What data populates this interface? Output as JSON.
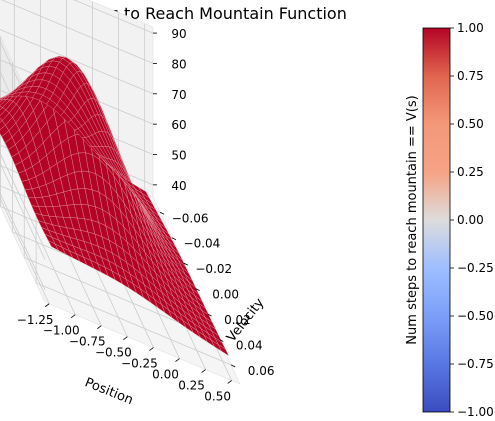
{
  "colors": {
    "surface": "#b40426",
    "pane": "#f2f2f2",
    "grid": "#cccccc",
    "mesh": "#e8a0a8"
  },
  "chart_data": {
    "type": "surface3d",
    "title": "Num steps to Reach Mountain Function",
    "xlabel": "Position",
    "ylabel": "Velocity",
    "zlabel": "",
    "x_ticks": [
      "−1.25",
      "−1.00",
      "−0.75",
      "−0.50",
      "−0.25",
      "0.00",
      "0.25",
      "0.50"
    ],
    "x_tick_values": [
      -1.25,
      -1.0,
      -0.75,
      -0.5,
      -0.25,
      0.0,
      0.25,
      0.5
    ],
    "y_ticks": [
      "−0.06",
      "−0.04",
      "−0.02",
      "0.00",
      "0.02",
      "0.04",
      "0.06"
    ],
    "y_tick_values": [
      -0.06,
      -0.04,
      -0.02,
      0.0,
      0.02,
      0.04,
      0.06
    ],
    "z_ticks": [
      "40",
      "50",
      "60",
      "70",
      "80",
      "90"
    ],
    "z_tick_values": [
      40,
      50,
      60,
      70,
      80,
      90
    ],
    "xlim": [
      -1.2,
      0.5
    ],
    "ylim": [
      -0.07,
      0.07
    ],
    "zlim": [
      37,
      90
    ],
    "surface": {
      "colormap": "coolwarm",
      "grid_lines": 25,
      "corner_values": {
        "x_min_y_min": 40,
        "x_min_y_max": 53,
        "x_max_y_min": 37,
        "x_max_y_max": 42
      },
      "peak": {
        "x": -0.52,
        "y": -0.014,
        "z": 88
      },
      "valley_edge_x_min": 60
    },
    "colorbar": {
      "label": "Num steps to reach mountain == V(s)",
      "ticks": [
        "−1.00",
        "−0.75",
        "−0.50",
        "−0.25",
        "0.00",
        "0.25",
        "0.50",
        "0.75",
        "1.00"
      ],
      "tick_values": [
        -1.0,
        -0.75,
        -0.5,
        -0.25,
        0.0,
        0.25,
        0.5,
        0.75,
        1.0
      ],
      "range": [
        -1.0,
        1.0
      ]
    }
  }
}
